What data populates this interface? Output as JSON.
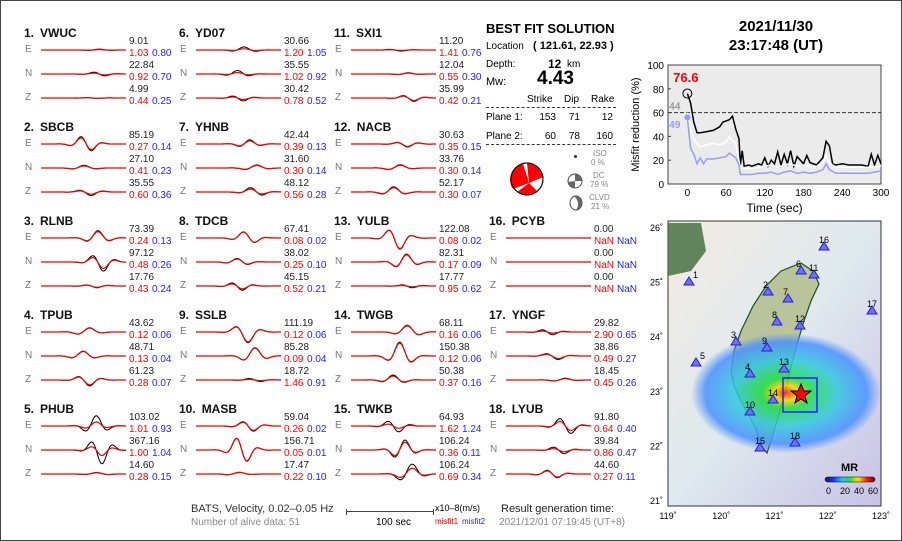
{
  "stations": [
    {
      "id": "1.",
      "name": "VWUC",
      "traces": [
        [
          "E",
          "9.01",
          "1.03",
          "0.80"
        ],
        [
          "N",
          "22.84",
          "0.92",
          "0.70"
        ],
        [
          "Z",
          "4.99",
          "0.44",
          "0.25"
        ]
      ]
    },
    {
      "id": "2.",
      "name": "SBCB",
      "traces": [
        [
          "E",
          "85.19",
          "0.27",
          "0.14"
        ],
        [
          "N",
          "27.10",
          "0.41",
          "0.23"
        ],
        [
          "Z",
          "35.55",
          "0.60",
          "0.36"
        ]
      ]
    },
    {
      "id": "3.",
      "name": "RLNB",
      "traces": [
        [
          "E",
          "73.39",
          "0.24",
          "0.13"
        ],
        [
          "N",
          "97.12",
          "0.48",
          "0.26"
        ],
        [
          "Z",
          "17.76",
          "0.43",
          "0.24"
        ]
      ]
    },
    {
      "id": "4.",
      "name": "TPUB",
      "traces": [
        [
          "E",
          "43.62",
          "0.12",
          "0.06"
        ],
        [
          "N",
          "48.71",
          "0.13",
          "0.04"
        ],
        [
          "Z",
          "61.23",
          "0.28",
          "0.07"
        ]
      ]
    },
    {
      "id": "5.",
      "name": "PHUB",
      "traces": [
        [
          "E",
          "103.02",
          "1.01",
          "0.93"
        ],
        [
          "N",
          "367.16",
          "1.00",
          "1.04"
        ],
        [
          "Z",
          "14.60",
          "0.28",
          "0.15"
        ]
      ]
    },
    {
      "id": "6.",
      "name": "YD07",
      "traces": [
        [
          "E",
          "30.66",
          "1.20",
          "1.05"
        ],
        [
          "N",
          "35.55",
          "1.02",
          "0.92"
        ],
        [
          "Z",
          "30.42",
          "0.78",
          "0.52"
        ]
      ]
    },
    {
      "id": "7.",
      "name": "YHNB",
      "traces": [
        [
          "E",
          "42.44",
          "0.39",
          "0.13"
        ],
        [
          "N",
          "31.60",
          "0.30",
          "0.14"
        ],
        [
          "Z",
          "48.12",
          "0.56",
          "0.28"
        ]
      ]
    },
    {
      "id": "8.",
      "name": "TDCB",
      "traces": [
        [
          "E",
          "67.41",
          "0.08",
          "0.02"
        ],
        [
          "N",
          "38.02",
          "0.25",
          "0.10"
        ],
        [
          "Z",
          "45.15",
          "0.52",
          "0.21"
        ]
      ]
    },
    {
      "id": "9.",
      "name": "SSLB",
      "traces": [
        [
          "E",
          "111.19",
          "0.12",
          "0.06"
        ],
        [
          "N",
          "85.28",
          "0.09",
          "0.04"
        ],
        [
          "Z",
          "18.72",
          "1.46",
          "0.91"
        ]
      ]
    },
    {
      "id": "10.",
      "name": "MASB",
      "traces": [
        [
          "E",
          "59.04",
          "0.26",
          "0.02"
        ],
        [
          "N",
          "156.71",
          "0.05",
          "0.01"
        ],
        [
          "Z",
          "17.47",
          "0.22",
          "0.10"
        ]
      ]
    },
    {
      "id": "11.",
      "name": "SXI1",
      "traces": [
        [
          "E",
          "11.20",
          "1.41",
          "0.76"
        ],
        [
          "N",
          "12.04",
          "0.55",
          "0.30"
        ],
        [
          "Z",
          "35.99",
          "0.42",
          "0.21"
        ]
      ]
    },
    {
      "id": "12.",
      "name": "NACB",
      "traces": [
        [
          "E",
          "30.63",
          "0.35",
          "0.15"
        ],
        [
          "N",
          "33.76",
          "0.30",
          "0.14"
        ],
        [
          "Z",
          "52.17",
          "0.30",
          "0.07"
        ]
      ]
    },
    {
      "id": "13.",
      "name": "YULB",
      "traces": [
        [
          "E",
          "122.08",
          "0.08",
          "0.02"
        ],
        [
          "N",
          "82.31",
          "0.17",
          "0.09"
        ],
        [
          "Z",
          "17.77",
          "0.95",
          "0.62"
        ]
      ]
    },
    {
      "id": "14.",
      "name": "TWGB",
      "traces": [
        [
          "E",
          "68.11",
          "0.16",
          "0.06"
        ],
        [
          "N",
          "150.38",
          "0.12",
          "0.06"
        ],
        [
          "Z",
          "50.38",
          "0.37",
          "0.16"
        ]
      ]
    },
    {
      "id": "15.",
      "name": "TWKB",
      "traces": [
        [
          "E",
          "64.93",
          "1.62",
          "1.24"
        ],
        [
          "N",
          "106.24",
          "0.36",
          "0.11"
        ],
        [
          "Z",
          "106.24",
          "0.69",
          "0.34"
        ]
      ]
    },
    {
      "id": "16.",
      "name": "PCYB",
      "traces": [
        [
          "E",
          "0.00",
          "NaN",
          "NaN"
        ],
        [
          "N",
          "0.00",
          "NaN",
          "NaN"
        ],
        [
          "Z",
          "0.00",
          "NaN",
          "NaN"
        ]
      ]
    },
    {
      "id": "17.",
      "name": "YNGF",
      "traces": [
        [
          "E",
          "29.82",
          "2.90",
          "0.65"
        ],
        [
          "N",
          "38.86",
          "0.49",
          "0.27"
        ],
        [
          "Z",
          "18.45",
          "0.45",
          "0.26"
        ]
      ]
    },
    {
      "id": "18.",
      "name": "LYUB",
      "traces": [
        [
          "E",
          "91.80",
          "0.64",
          "0.40"
        ],
        [
          "N",
          "39.84",
          "0.86",
          "0.47"
        ],
        [
          "Z",
          "44.60",
          "0.27",
          "0.11"
        ]
      ]
    }
  ],
  "footer": {
    "network": "BATS, Velocity, 0.02–0.05 Hz",
    "alive": "Number of alive data: 51",
    "scale_unit": "x10–8(m/s)",
    "scale_len": "100 sec",
    "misfit1": "misfit1",
    "misfit2": "misfit2",
    "gen_label": "Result generation time:",
    "gen_time": "2021/12/01 07:19:45 (UT+8)"
  },
  "solution": {
    "title": "BEST FIT SOLUTION",
    "location_label": "Location",
    "location": "( 121.61,  22.93 )",
    "depth_label": "Depth:",
    "depth": "12",
    "depth_unit": "km",
    "mw_label": "Mw:",
    "mw": "4.43",
    "headers": [
      "Strike",
      "Dip",
      "Rake"
    ],
    "planes": [
      {
        "label": "Plane 1:",
        "values": [
          "153",
          "71",
          "12"
        ]
      },
      {
        "label": "Plane 2:",
        "values": [
          "60",
          "78",
          "160"
        ]
      }
    ],
    "iso_label": "ISO",
    "iso": "0 %",
    "dc_label": "DC",
    "dc": "79 %",
    "clvd_label": "CLVD",
    "clvd": "21 %"
  },
  "event": {
    "date": "2021/11/30",
    "time": "23:17:48  (UT)"
  },
  "chart_data": {
    "type": "line",
    "xlabel": "Time (sec)",
    "ylabel": "Misfit reduction (%)",
    "xlim": [
      -30,
      300
    ],
    "ylim": [
      0,
      100
    ],
    "xticks": [
      0,
      60,
      120,
      180,
      240,
      300
    ],
    "yticks": [
      0,
      20,
      40,
      60,
      80,
      100
    ],
    "threshold": 60,
    "best_label": "76.6",
    "gray_label": "44",
    "blue_label": "49",
    "series": [
      {
        "color": "#000000",
        "x": [
          0,
          5,
          10,
          15,
          20,
          30,
          40,
          50,
          55,
          60,
          65,
          70,
          75,
          80,
          82,
          85,
          88,
          95,
          100,
          110,
          115,
          120,
          125,
          130,
          135,
          140,
          145,
          150,
          155,
          160,
          165,
          170,
          180,
          185,
          190,
          200,
          210,
          215,
          220,
          225,
          230,
          240,
          250,
          260,
          270,
          280,
          285,
          290,
          295,
          300
        ],
        "y": [
          76,
          68,
          52,
          43,
          43,
          44,
          45,
          48,
          52,
          53,
          54,
          57,
          46,
          38,
          16,
          28,
          15,
          16,
          15,
          17,
          16,
          22,
          15,
          20,
          17,
          27,
          16,
          25,
          17,
          28,
          15,
          23,
          17,
          24,
          18,
          16,
          22,
          36,
          32,
          17,
          16,
          17,
          16,
          16,
          16,
          15,
          25,
          16,
          24,
          17
        ]
      },
      {
        "color": "#ffffff",
        "x": [
          0,
          5,
          10,
          15,
          20,
          30,
          40,
          50,
          60,
          65,
          70,
          75,
          80,
          82,
          90,
          100,
          110,
          120,
          130,
          140,
          150,
          160,
          170,
          180,
          190,
          200,
          210,
          215,
          220,
          230,
          240,
          260,
          280,
          300
        ],
        "y": [
          60,
          45,
          38,
          34,
          31,
          33,
          34,
          33,
          35,
          40,
          36,
          34,
          20,
          13,
          13,
          13,
          14,
          15,
          16,
          14,
          16,
          17,
          15,
          16,
          14,
          15,
          18,
          24,
          18,
          14,
          14,
          14,
          14,
          15
        ]
      },
      {
        "color": "#9999ff",
        "x": [
          0,
          3,
          5,
          10,
          15,
          20,
          25,
          30,
          40,
          50,
          60,
          65,
          70,
          75,
          80,
          82,
          90,
          100,
          110,
          120,
          130,
          140,
          150,
          160,
          170,
          180,
          190,
          200,
          210,
          215,
          220,
          230,
          240,
          250,
          260,
          270,
          280,
          290,
          300
        ],
        "y": [
          56,
          40,
          30,
          25,
          17,
          22,
          17,
          21,
          21,
          22,
          23,
          26,
          24,
          22,
          16,
          8,
          8,
          8,
          9,
          9,
          10,
          8,
          10,
          11,
          9,
          10,
          9,
          10,
          12,
          17,
          12,
          9,
          9,
          9,
          9,
          9,
          9,
          10,
          11
        ]
      }
    ]
  },
  "map": {
    "lat_ticks": [
      "26˚",
      "25˚",
      "24˚",
      "23˚",
      "22˚",
      "21˚"
    ],
    "lon_ticks": [
      "119˚",
      "120˚",
      "121˚",
      "122˚",
      "123˚"
    ],
    "legend_title": "MR",
    "legend_ticks": [
      "0",
      "20",
      "40",
      "60"
    ]
  }
}
